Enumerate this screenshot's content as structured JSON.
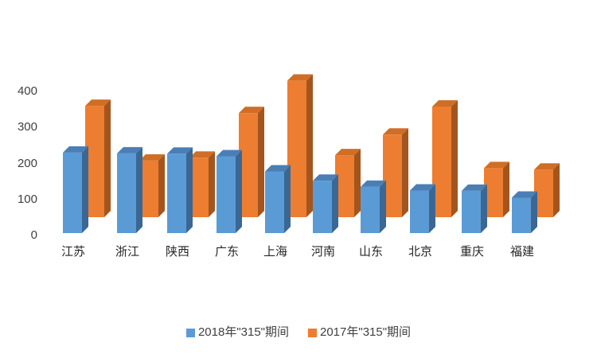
{
  "chart_data": {
    "type": "bar",
    "variant": "3d-clustered-column",
    "title": "",
    "xlabel": "",
    "ylabel": "",
    "categories": [
      "江苏",
      "浙江",
      "陕西",
      "广东",
      "上海",
      "河南",
      "山东",
      "北京",
      "重庆",
      "福建"
    ],
    "series": [
      {
        "name": "2018年\"315\"期间",
        "color": "#5B9BD5",
        "top_color": "#4A7EB5",
        "side_color": "#3A6794",
        "values": [
          230,
          228,
          227,
          220,
          178,
          152,
          135,
          125,
          124,
          105
        ]
      },
      {
        "name": "2017年\"315\"期间",
        "color": "#ED7D31",
        "top_color": "#D06E26",
        "side_color": "#A4551E",
        "values": [
          360,
          208,
          216,
          340,
          430,
          223,
          280,
          358,
          187,
          183
        ]
      }
    ],
    "y_ticks": [
      0,
      100,
      200,
      300,
      400
    ],
    "ylim": [
      0,
      450
    ],
    "grid": false,
    "axis_lines": false,
    "legend_position": "bottom",
    "background": "#ffffff",
    "text_color": "#404040"
  }
}
